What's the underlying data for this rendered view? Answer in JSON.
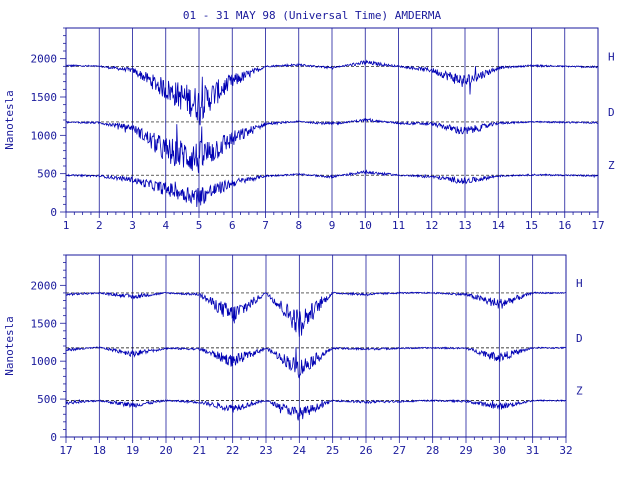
{
  "title": "01 - 31 MAY 98 (Universal Time) AMDERMA",
  "colors": {
    "ink": "#1a1a9c",
    "trace": "#0000b4",
    "frame": "#000000"
  },
  "chart_data": [
    {
      "type": "line",
      "panel": "top",
      "ylabel": "Nanotesla",
      "ylim": [
        0,
        2400
      ],
      "yticks": [
        0,
        500,
        1000,
        1500,
        2000
      ],
      "xlim": [
        1,
        17
      ],
      "xticks": [
        "1",
        "2",
        "3",
        "4",
        "5",
        "6",
        "7",
        "8",
        "9",
        "10",
        "11",
        "12",
        "13",
        "14",
        "15",
        "16",
        "17"
      ],
      "grid": "vertical lines at each day",
      "series": [
        {
          "name": "H",
          "baseline": 1900,
          "values": [
            1910,
            1900,
            1850,
            1600,
            1400,
            1700,
            1900,
            1920,
            1880,
            1950,
            1900,
            1850,
            1700,
            1880,
            1910,
            1900,
            1890
          ]
        },
        {
          "name": "D",
          "baseline": 1175,
          "values": [
            1170,
            1165,
            1100,
            800,
            700,
            950,
            1150,
            1180,
            1150,
            1200,
            1160,
            1150,
            1050,
            1160,
            1175,
            1170,
            1165
          ]
        },
        {
          "name": "Z",
          "baseline": 480,
          "values": [
            480,
            470,
            420,
            300,
            200,
            380,
            470,
            490,
            460,
            520,
            480,
            460,
            400,
            470,
            485,
            480,
            470
          ]
        }
      ]
    },
    {
      "type": "line",
      "panel": "bottom",
      "ylabel": "Nanotesla",
      "ylim": [
        0,
        2400
      ],
      "yticks": [
        0,
        500,
        1000,
        1500,
        2000
      ],
      "xlim": [
        17,
        32
      ],
      "xticks": [
        "17",
        "18",
        "19",
        "20",
        "21",
        "22",
        "23",
        "24",
        "25",
        "26",
        "27",
        "28",
        "29",
        "30",
        "31",
        "32"
      ],
      "grid": "vertical lines at each day",
      "series": [
        {
          "name": "H",
          "baseline": 1900,
          "values": [
            1880,
            1900,
            1850,
            1900,
            1880,
            1600,
            1900,
            1500,
            1900,
            1880,
            1900,
            1900,
            1880,
            1750,
            1900,
            1900
          ]
        },
        {
          "name": "D",
          "baseline": 1175,
          "values": [
            1150,
            1180,
            1100,
            1170,
            1160,
            1000,
            1170,
            900,
            1170,
            1160,
            1170,
            1175,
            1170,
            1050,
            1175,
            1175
          ]
        },
        {
          "name": "Z",
          "baseline": 480,
          "values": [
            450,
            480,
            420,
            480,
            460,
            380,
            480,
            300,
            480,
            460,
            470,
            480,
            470,
            400,
            480,
            480
          ]
        }
      ]
    }
  ]
}
